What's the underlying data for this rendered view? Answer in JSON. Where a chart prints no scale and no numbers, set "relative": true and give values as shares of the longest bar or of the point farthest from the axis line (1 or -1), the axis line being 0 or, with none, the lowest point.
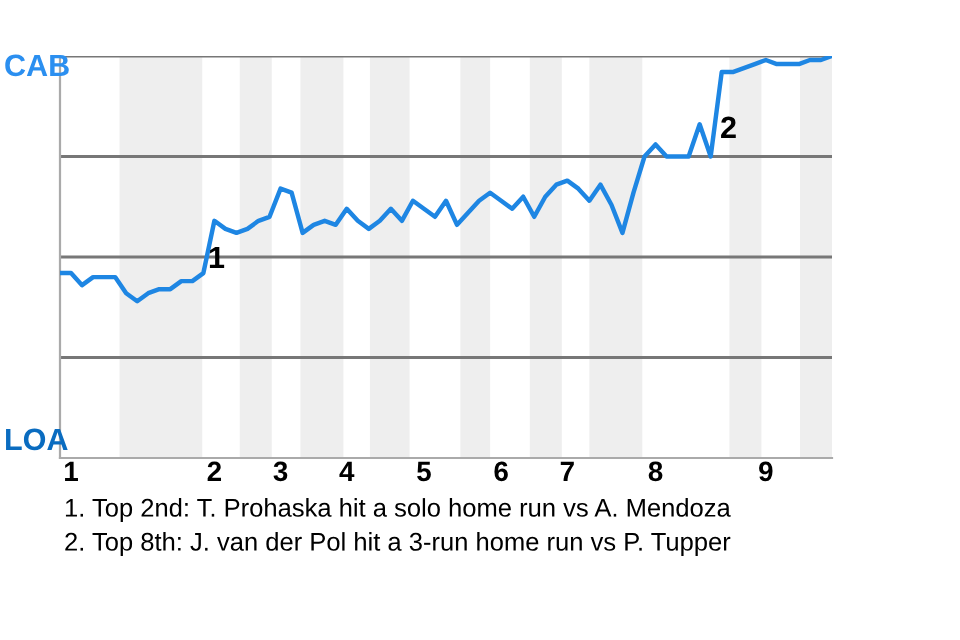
{
  "chart_data": {
    "type": "line",
    "relative": true,
    "categories": [
      null,
      "1",
      null,
      null,
      null,
      null,
      null,
      null,
      null,
      null,
      null,
      null,
      null,
      null,
      "2",
      null,
      null,
      null,
      null,
      null,
      "3",
      null,
      null,
      null,
      null,
      null,
      "4",
      null,
      null,
      null,
      null,
      null,
      null,
      "5",
      null,
      null,
      null,
      null,
      null,
      null,
      "6",
      null,
      null,
      null,
      null,
      null,
      "7",
      null,
      null,
      null,
      null,
      null,
      null,
      null,
      "8",
      null,
      null,
      null,
      null,
      null,
      null,
      null,
      null,
      null,
      "9",
      null,
      null,
      null,
      null,
      null,
      null
    ],
    "series": [
      {
        "color": "#1e86e3",
        "values": [
          0.46,
          0.46,
          0.43,
          0.45,
          0.45,
          0.45,
          0.41,
          0.39,
          0.41,
          0.42,
          0.42,
          0.44,
          0.44,
          0.46,
          0.59,
          0.57,
          0.56,
          0.57,
          0.59,
          0.6,
          0.67,
          0.66,
          0.56,
          0.58,
          0.59,
          0.58,
          0.62,
          0.59,
          0.57,
          0.59,
          0.62,
          0.59,
          0.64,
          0.62,
          0.6,
          0.64,
          0.58,
          0.61,
          0.64,
          0.66,
          0.64,
          0.62,
          0.65,
          0.6,
          0.65,
          0.68,
          0.69,
          0.67,
          0.64,
          0.68,
          0.63,
          0.56,
          0.66,
          0.75,
          0.78,
          0.75,
          0.75,
          0.75,
          0.83,
          0.75,
          0.96,
          0.96,
          0.97,
          0.98,
          0.99,
          0.98,
          0.98,
          0.98,
          0.99,
          0.99,
          1.0
        ]
      }
    ],
    "ref_lines": [
      {
        "axis": "y",
        "value": 0.25,
        "color": "#777777"
      },
      {
        "axis": "y",
        "value": 0.5,
        "color": "#777777"
      },
      {
        "axis": "y",
        "value": 0.75,
        "color": "#777777"
      },
      {
        "axis": "y",
        "value": 1.0,
        "color": "#777777"
      }
    ],
    "annotations": [
      "CAB",
      "LOA",
      "1",
      "2",
      "1. Top 2nd: T. Prohaska hit a solo home run vs A. Mendoza",
      "2. Top 8th: J. van der Pol hit a 3-run home run vs P. Tupper"
    ],
    "grid": false,
    "legend": false,
    "marker": "none",
    "line_style": "solid"
  }
}
